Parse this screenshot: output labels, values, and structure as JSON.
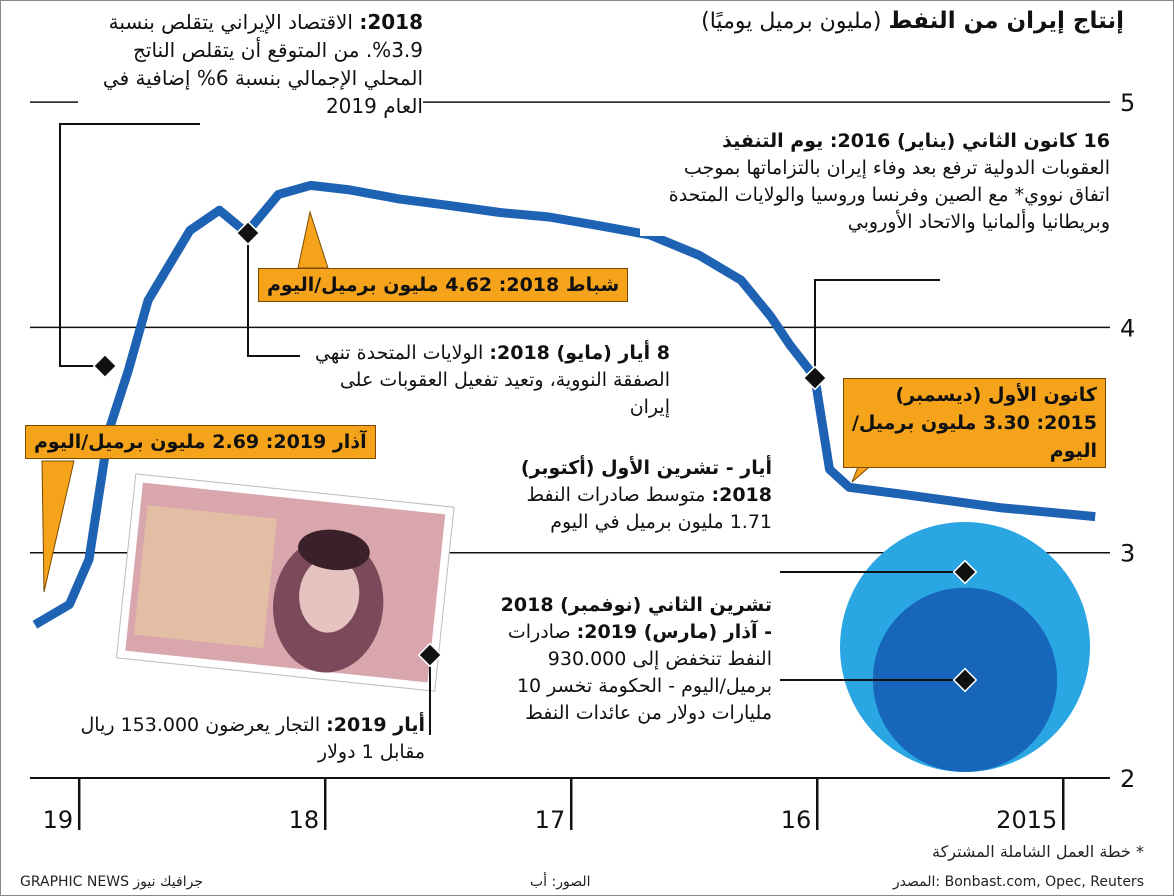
{
  "chart_data": {
    "type": "line",
    "title": "إنتاج إيران من النفط",
    "subtitle": "(مليون برميل يوميًا)",
    "x": [
      2014.87,
      2015.26,
      2015.66,
      2015.87,
      2015.95,
      2016.01,
      2016.11,
      2016.19,
      2016.31,
      2016.48,
      2016.68,
      2016.88,
      2017.09,
      2017.29,
      2017.49,
      2017.7,
      2017.9,
      2018.06,
      2018.19,
      2018.32,
      2018.43,
      2018.55,
      2018.72,
      2018.8,
      2018.88,
      2018.96,
      2019.04,
      2019.18
    ],
    "values": [
      3.16,
      3.2,
      3.26,
      3.29,
      3.37,
      3.78,
      3.92,
      4.05,
      4.21,
      4.32,
      4.41,
      4.45,
      4.49,
      4.51,
      4.54,
      4.57,
      4.61,
      4.63,
      4.59,
      4.42,
      4.52,
      4.43,
      4.12,
      3.81,
      3.54,
      2.97,
      2.77,
      2.68
    ],
    "color": "#1e62b4",
    "xlim": [
      2019.2,
      2014.81
    ],
    "xticks": [
      {
        "value": 2019,
        "label": "19"
      },
      {
        "value": 2018,
        "label": "18"
      },
      {
        "value": 2017,
        "label": "17"
      },
      {
        "value": 2016,
        "label": "16"
      },
      2015
    ],
    "ylim": [
      2,
      5.2
    ],
    "yticks": [
      2,
      3,
      4,
      5
    ],
    "grid": true,
    "bubbles": {
      "values": [
        1.71,
        0.93
      ],
      "colors": [
        "#2aa6e2",
        "#1766bb"
      ]
    },
    "annotations": [
      {
        "date": "2018:",
        "text": " الاقتصاد الإيراني يتقلص بنسبة 3.9%. من المتوقع أن يتقلص الناتج المحلي الإجمالي بنسبة 6% إضافية في العام 2019"
      },
      {
        "date": "16 كانون الثاني (يناير) 2016: يوم التنفيذ",
        "text": "العقوبات الدولية ترفع بعد وفاء إيران بالتزاماتها بموجب اتفاق نووي* مع الصين وفرنسا وروسيا والولايات المتحدة وبريطانيا وألمانيا والاتحاد الأوروبي"
      },
      {
        "date": "8 أيار (مايو) 2018:",
        "text": " الولايات المتحدة تنهي الصفقة النووية، وتعيد تفعيل العقوبات على إيران"
      },
      {
        "date": "أيار - تشرين الأول (أكتوبر) 2018:",
        "text": " متوسط صادرات النفط 1.71 مليون برميل في اليوم"
      },
      {
        "date": "تشرين الثاني (نوفمبر) 2018 - آذار (مارس) 2019:",
        "text": " صادرات النفط تنخفض إلى 930.000 برميل/اليوم - الحكومة تخسر 10 مليارات دولار من عائدات النفط"
      },
      {
        "date": "أيار 2019:",
        "text": " التجار يعرضون 153.000 ريال مقابل 1 دولار"
      }
    ],
    "callouts": [
      "شباط 2018: 4.62 مليون برميل/اليوم",
      "كانون الأول (ديسمبر) 2015: 3.30 مليون برميل/اليوم",
      "آذار 2019: 2.69 مليون برميل/اليوم"
    ],
    "footnote": "* خطة العمل الشاملة المشتركة",
    "source": "المصدر: Bonbast.com, Opec, Reuters",
    "photo_credit": "الصور: أب",
    "credit": "GRAPHIC NEWS جرافيك نيوز"
  }
}
